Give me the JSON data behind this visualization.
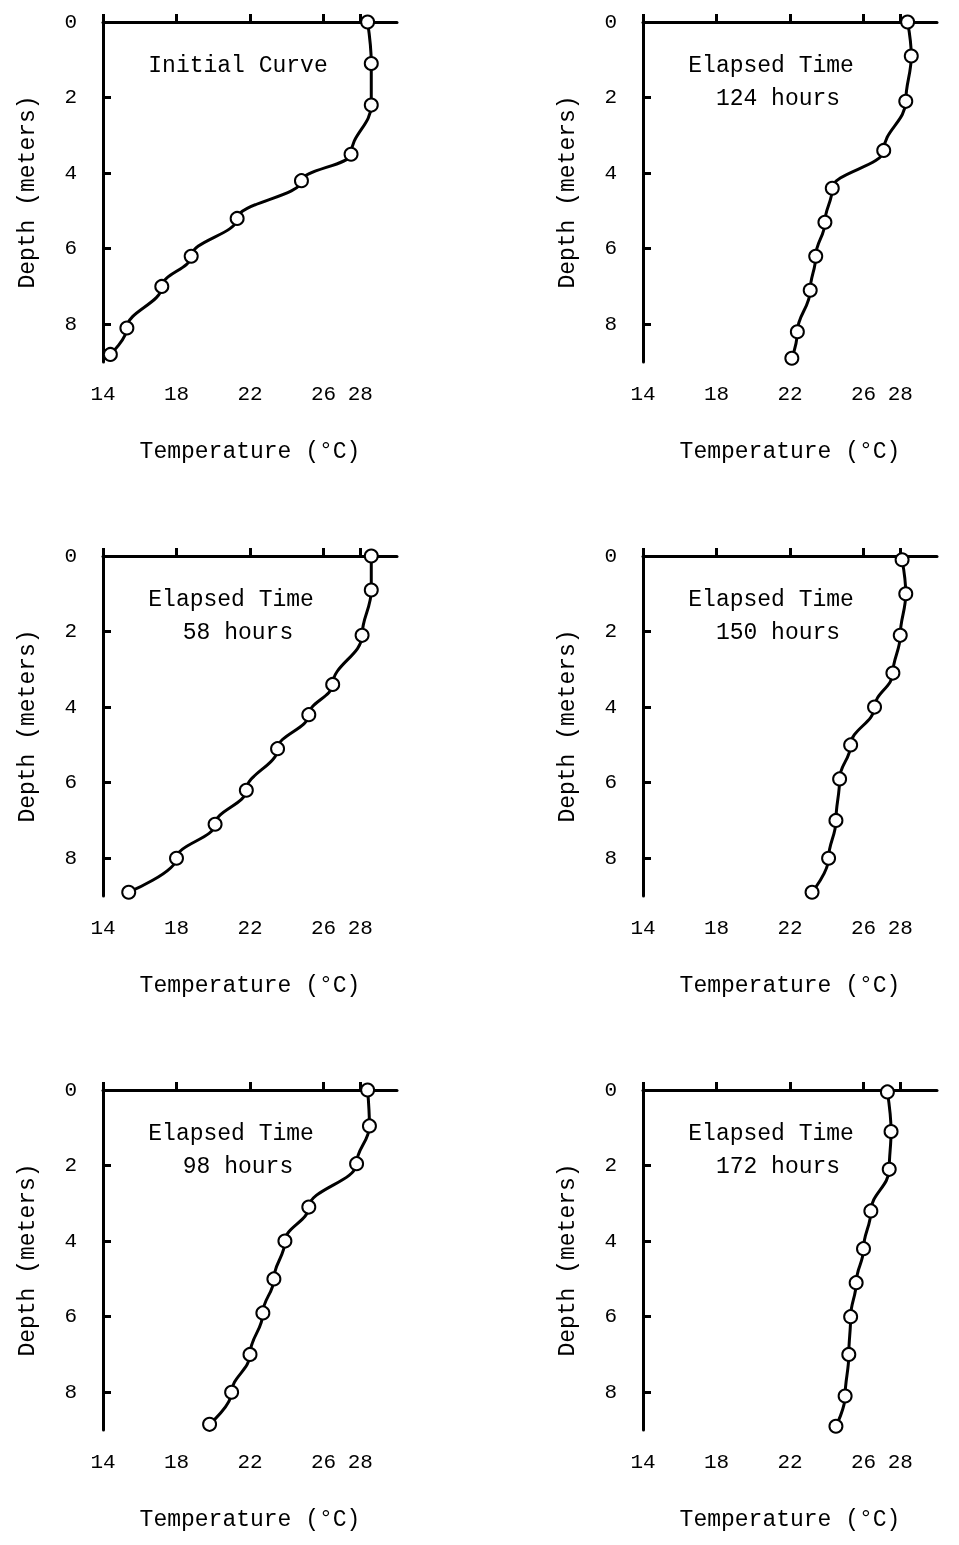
{
  "chart_data": [
    {
      "type": "line",
      "title": "Initial Curve",
      "xlabel": "Temperature (°C)",
      "ylabel": "Depth (meters)",
      "color": "#000000",
      "marker": "circle",
      "xlim": [
        14,
        30
      ],
      "xticks": [
        14,
        18,
        22,
        26,
        28
      ],
      "ylim": [
        9,
        0
      ],
      "yticks": [
        0,
        2,
        4,
        6,
        8
      ],
      "x": [
        28.4,
        28.6,
        28.6,
        27.5,
        24.8,
        21.3,
        18.8,
        17.2,
        15.3,
        14.4
      ],
      "values": [
        0,
        1.1,
        2.2,
        3.5,
        4.2,
        5.2,
        6.2,
        7.0,
        8.1,
        8.8
      ]
    },
    {
      "type": "line",
      "title": "Elapsed Time 124 hours",
      "xlabel": "Temperature (°C)",
      "ylabel": "Depth (meters)",
      "color": "#000000",
      "marker": "circle",
      "xlim": [
        14,
        30
      ],
      "xticks": [
        14,
        18,
        22,
        26,
        28
      ],
      "ylim": [
        9,
        0
      ],
      "yticks": [
        0,
        2,
        4,
        6,
        8
      ],
      "x": [
        28.4,
        28.6,
        28.3,
        27.1,
        24.3,
        23.9,
        23.4,
        23.1,
        22.4,
        22.1
      ],
      "values": [
        0,
        0.9,
        2.1,
        3.4,
        4.4,
        5.3,
        6.2,
        7.1,
        8.2,
        8.9
      ]
    },
    {
      "type": "line",
      "title": "Elapsed Time 58 hours",
      "xlabel": "Temperature (°C)",
      "ylabel": "Depth (meters)",
      "color": "#000000",
      "marker": "circle",
      "xlim": [
        14,
        30
      ],
      "xticks": [
        14,
        18,
        22,
        26,
        28
      ],
      "ylim": [
        9,
        0
      ],
      "yticks": [
        0,
        2,
        4,
        6,
        8
      ],
      "x": [
        28.6,
        28.6,
        28.1,
        26.5,
        25.2,
        23.5,
        21.8,
        20.1,
        18.0,
        15.4
      ],
      "values": [
        0,
        0.9,
        2.1,
        3.4,
        4.2,
        5.1,
        6.2,
        7.1,
        8.0,
        8.9
      ]
    },
    {
      "type": "line",
      "title": "Elapsed Time 150 hours",
      "xlabel": "Temperature (°C)",
      "ylabel": "Depth (meters)",
      "color": "#000000",
      "marker": "circle",
      "xlim": [
        14,
        30
      ],
      "xticks": [
        14,
        18,
        22,
        26,
        28
      ],
      "ylim": [
        9,
        0
      ],
      "yticks": [
        0,
        2,
        4,
        6,
        8
      ],
      "x": [
        28.1,
        28.3,
        28.0,
        27.6,
        26.6,
        25.3,
        24.7,
        24.5,
        24.1,
        23.2
      ],
      "values": [
        0.1,
        1.0,
        2.1,
        3.1,
        4.0,
        5.0,
        5.9,
        7.0,
        8.0,
        8.9
      ]
    },
    {
      "type": "line",
      "title": "Elapsed Time 98 hours",
      "xlabel": "Temperature (°C)",
      "ylabel": "Depth (meters)",
      "color": "#000000",
      "marker": "circle",
      "xlim": [
        14,
        30
      ],
      "xticks": [
        14,
        18,
        22,
        26,
        28
      ],
      "ylim": [
        9,
        0
      ],
      "yticks": [
        0,
        2,
        4,
        6,
        8
      ],
      "x": [
        28.4,
        28.5,
        27.8,
        25.2,
        23.9,
        23.3,
        22.7,
        22.0,
        21.0,
        19.8
      ],
      "values": [
        0,
        0.95,
        1.95,
        3.1,
        4.0,
        5.0,
        5.9,
        7.0,
        8.0,
        8.85
      ]
    },
    {
      "type": "line",
      "title": "Elapsed Time 172 hours",
      "xlabel": "Temperature (°C)",
      "ylabel": "Depth (meters)",
      "color": "#000000",
      "marker": "circle",
      "xlim": [
        14,
        30
      ],
      "xticks": [
        14,
        18,
        22,
        26,
        28
      ],
      "ylim": [
        9,
        0
      ],
      "yticks": [
        0,
        2,
        4,
        6,
        8
      ],
      "x": [
        27.3,
        27.5,
        27.4,
        26.4,
        26.0,
        25.6,
        25.3,
        25.2,
        25.0,
        24.5
      ],
      "values": [
        0.05,
        1.1,
        2.1,
        3.2,
        4.2,
        5.1,
        6.0,
        7.0,
        8.1,
        8.9
      ]
    }
  ]
}
